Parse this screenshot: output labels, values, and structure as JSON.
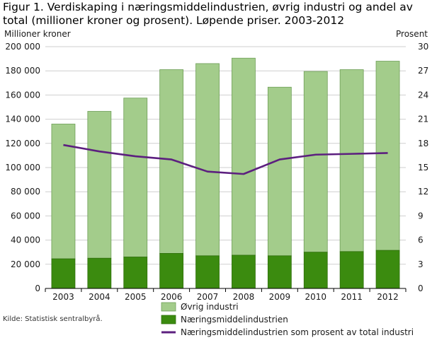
{
  "title_line1": "Figur 1. Verdiskaping i næringsmiddelindustrien, øvrig industri og andel av",
  "title_line2": "total (millioner kroner og prosent). Løpende priser. 2003-2012",
  "source": "Kilde: Statistisk sentralbyrå.",
  "colors": {
    "ovrig": "#a3cc8b",
    "naering": "#3b8b0f",
    "line": "#5c1f7f",
    "grid": "#cfcfcf",
    "axis": "#000000"
  },
  "chart_data": {
    "type": "bar",
    "stacked": true,
    "categories": [
      "2003",
      "2004",
      "2005",
      "2006",
      "2007",
      "2008",
      "2009",
      "2010",
      "2011",
      "2012"
    ],
    "ylabel_left": "Millioner kroner",
    "ylabel_right": "Prosent",
    "ylim_left": [
      0,
      200000
    ],
    "ylim_right": [
      0,
      30
    ],
    "yticks_left": [
      "0",
      "20 000",
      "40 000",
      "60 000",
      "80 000",
      "100 000",
      "120 000",
      "140 000",
      "160 000",
      "180 000",
      "200 000"
    ],
    "yticks_right": [
      "0",
      "3",
      "6",
      "9",
      "12",
      "15",
      "18",
      "21",
      "24",
      "27",
      "30"
    ],
    "grid": true,
    "legend_position": "bottom",
    "series": [
      {
        "name": "Næringsmiddelindustrien",
        "kind": "bar",
        "values": [
          24500,
          25000,
          26000,
          29000,
          27000,
          27500,
          27000,
          30000,
          30500,
          31500
        ]
      },
      {
        "name": "Øvrig industri",
        "kind": "bar",
        "values": [
          111500,
          121500,
          131500,
          152000,
          159000,
          163000,
          139500,
          149500,
          150500,
          156500
        ]
      },
      {
        "name": "Næringsmiddelindustrien som prosent av total industri",
        "kind": "line",
        "axis": "right",
        "values": [
          17.8,
          17.0,
          16.4,
          16.0,
          14.5,
          14.2,
          16.0,
          16.6,
          16.7,
          16.8
        ]
      }
    ],
    "legend": [
      "Øvrig industri",
      "Næringsmiddelindustrien",
      "Næringsmiddelindustrien som prosent av total industri"
    ]
  }
}
